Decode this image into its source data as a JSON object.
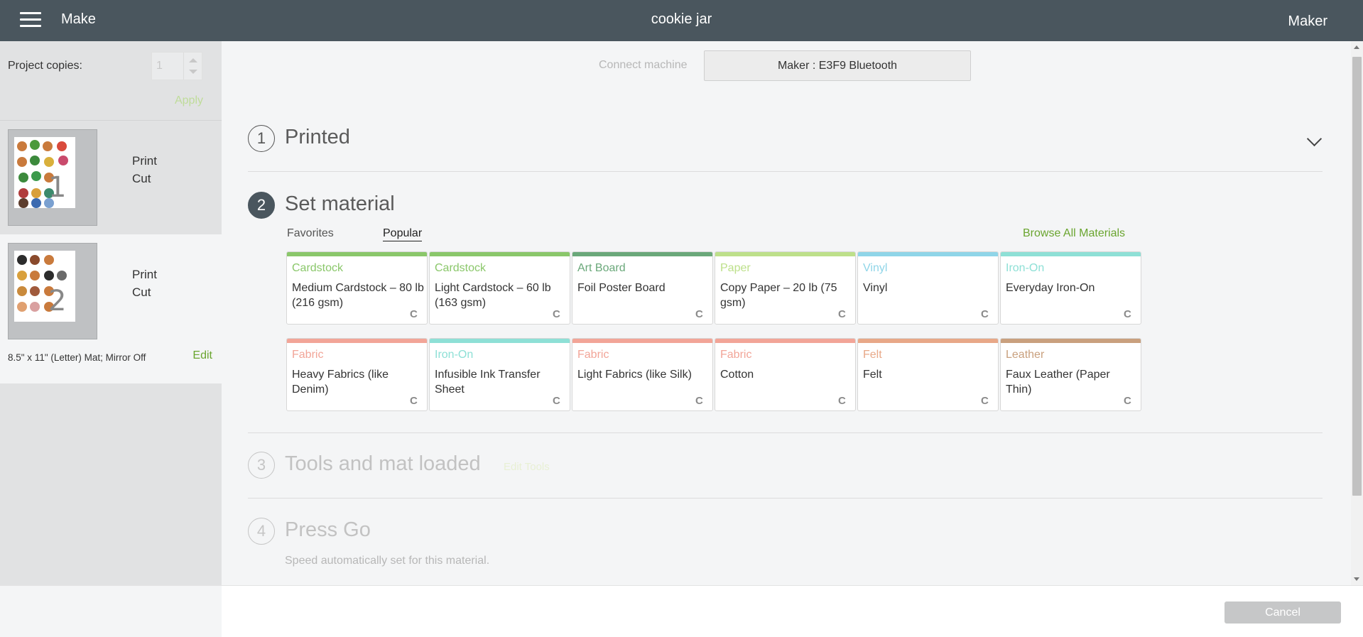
{
  "topbar": {
    "left_title": "Make",
    "project_name": "cookie jar",
    "machine_mode": "Maker"
  },
  "sidebar": {
    "copies_label": "Project copies:",
    "copies_value": "1",
    "apply_label": "Apply",
    "mats": [
      {
        "number": "1",
        "line1": "Print",
        "line2": "Cut"
      },
      {
        "number": "2",
        "line1": "Print",
        "line2": "Cut",
        "info": "8.5\" x 11\" (Letter) Mat; Mirror Off",
        "edit_label": "Edit"
      }
    ]
  },
  "connect": {
    "label": "Connect machine",
    "machine": "Maker : E3F9 Bluetooth"
  },
  "steps": [
    {
      "number": "1",
      "title": "Printed"
    },
    {
      "number": "2",
      "title": "Set material"
    },
    {
      "number": "3",
      "title": "Tools and mat loaded",
      "edit_tools": "Edit Tools"
    },
    {
      "number": "4",
      "title": "Press Go",
      "note": "Speed automatically set for this material."
    }
  ],
  "materials": {
    "tabs": [
      "Favorites",
      "Popular"
    ],
    "active_tab": "Popular",
    "browse_label": "Browse All Materials",
    "cards": [
      {
        "category": "Cardstock",
        "name": "Medium Cardstock – 80 lb (216 gsm)",
        "color": "#8ac76a"
      },
      {
        "category": "Cardstock",
        "name": "Light Cardstock – 60 lb (163 gsm)",
        "color": "#8ac76a"
      },
      {
        "category": "Art Board",
        "name": "Foil Poster Board",
        "color": "#6aa87a"
      },
      {
        "category": "Paper",
        "name": "Copy Paper – 20 lb (75 gsm)",
        "color": "#bde08a"
      },
      {
        "category": "Vinyl",
        "name": "Vinyl",
        "color": "#8fd5e8"
      },
      {
        "category": "Iron-On",
        "name": "Everyday Iron-On",
        "color": "#8ee0d6"
      },
      {
        "category": "Fabric",
        "name": "Heavy Fabrics (like Denim)",
        "color": "#f2a598"
      },
      {
        "category": "Iron-On",
        "name": "Infusible Ink Transfer Sheet",
        "color": "#8ee0d6"
      },
      {
        "category": "Fabric",
        "name": "Light Fabrics (like Silk)",
        "color": "#f2a598"
      },
      {
        "category": "Fabric",
        "name": "Cotton",
        "color": "#f2a598"
      },
      {
        "category": "Felt",
        "name": "Felt",
        "color": "#e8a888"
      },
      {
        "category": "Leather",
        "name": "Faux Leather (Paper Thin)",
        "color": "#c9a07e"
      }
    ],
    "cricut_mark": "C"
  },
  "footer": {
    "cancel_label": "Cancel"
  }
}
